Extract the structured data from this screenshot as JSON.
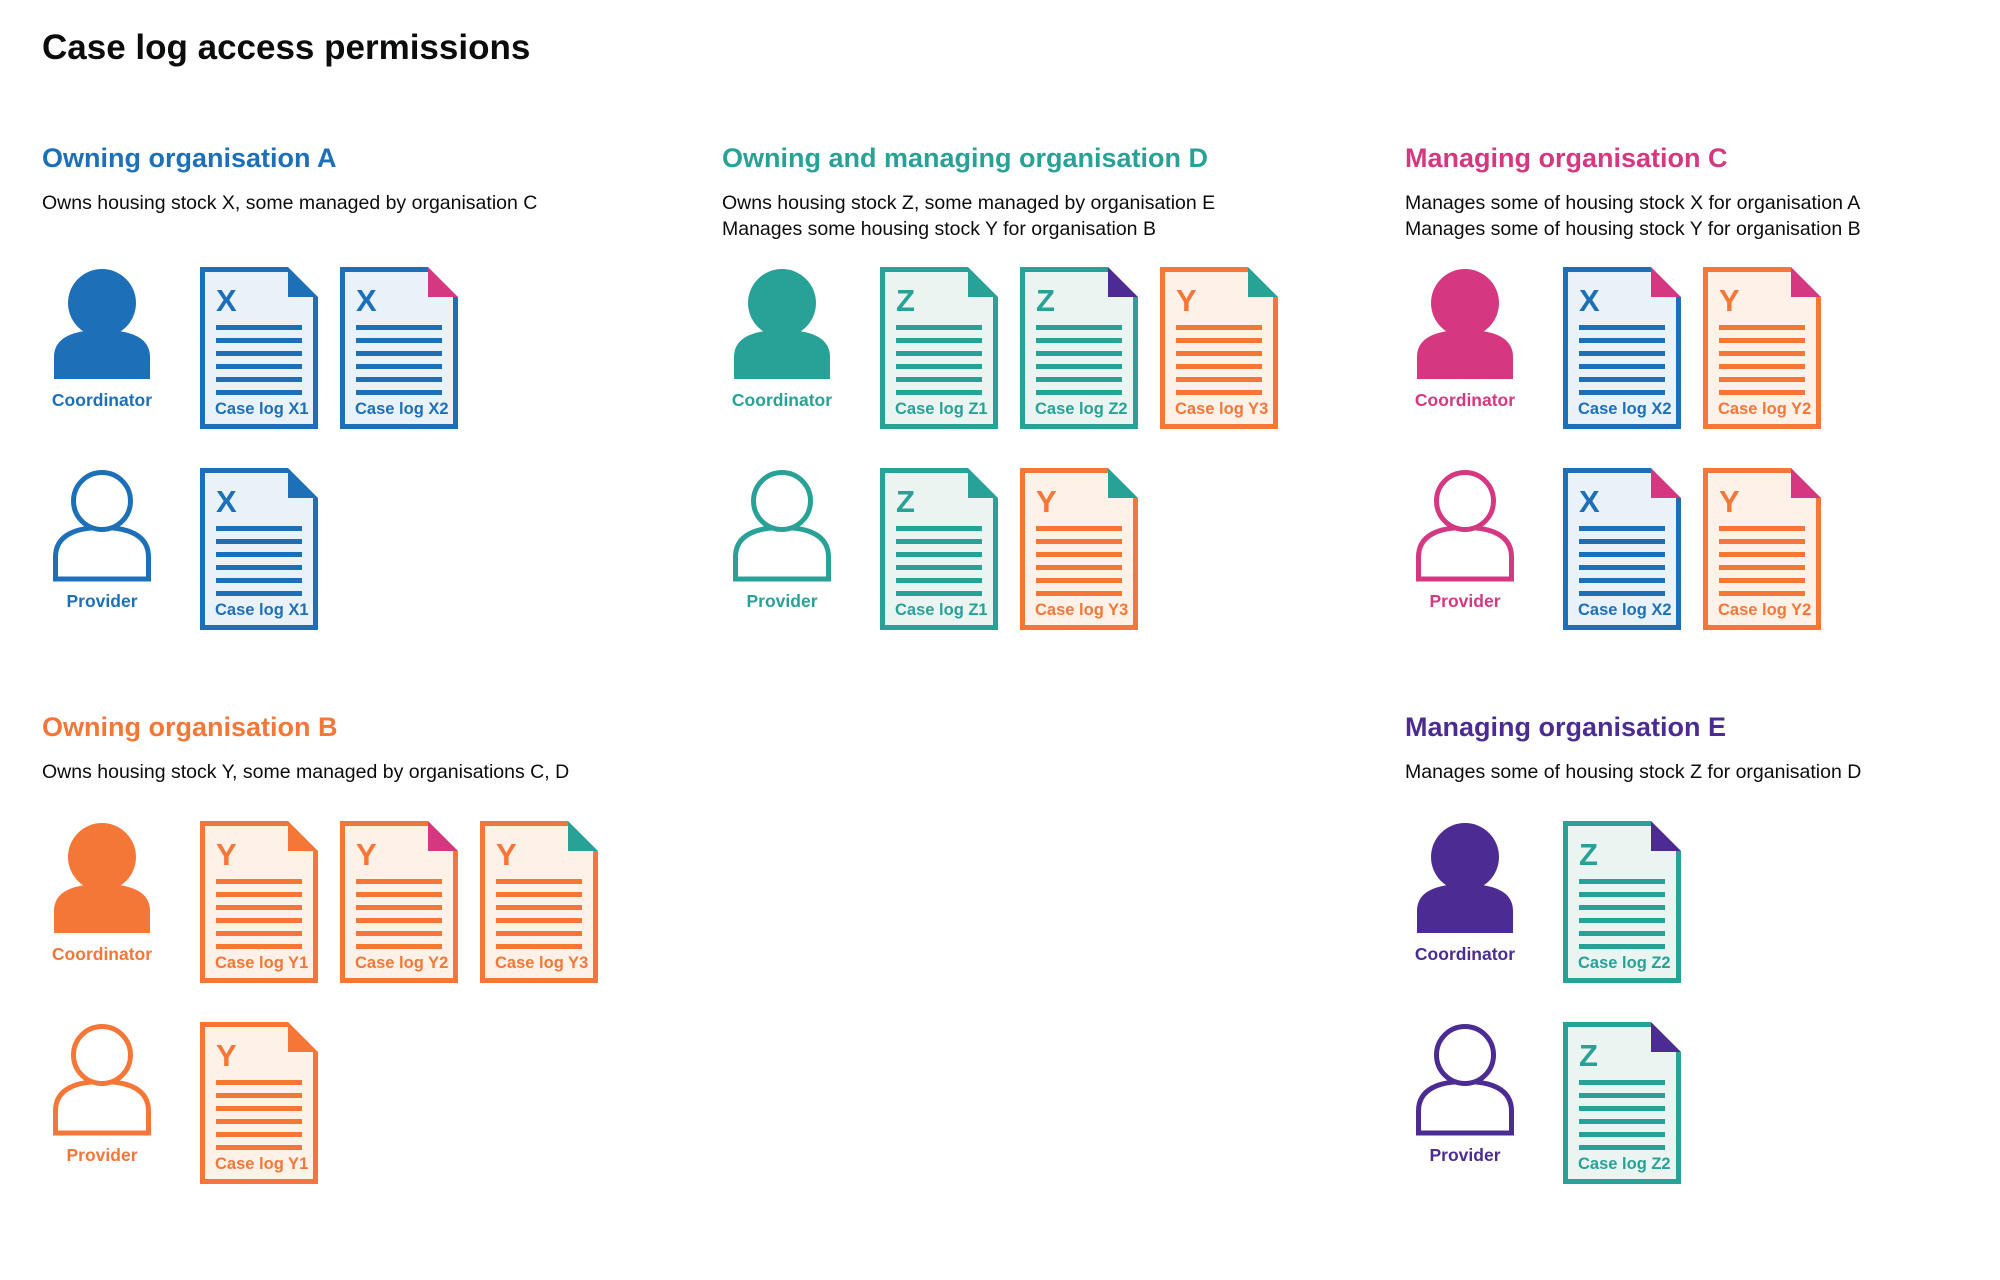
{
  "page": {
    "title": "Case log access permissions",
    "background": "#ffffff",
    "text_color": "#0b0c0c"
  },
  "palette": {
    "blue": "#1d70b8",
    "teal": "#28a197",
    "orange": "#f47738",
    "pink": "#d53880",
    "purple": "#4c2c92",
    "text": "#0b0c0c",
    "tints": {
      "blue": "#e9f1f9",
      "teal": "#eaf5f2",
      "orange": "#fdf1e8"
    }
  },
  "icons": {
    "coordinator": "person-solid-icon",
    "provider": "person-outline-icon",
    "document": "case-log-document-icon",
    "fold": "folded-corner"
  },
  "sections": [
    {
      "id": "owning-organisation-a",
      "title": "Owning organisation A",
      "color": "blue",
      "description": [
        "Owns housing stock X, some managed by organisation C"
      ],
      "groups": [
        {
          "role": "Coordinator",
          "person_style": "solid",
          "docs": [
            {
              "letter": "X",
              "label": "Case log X1",
              "doc_color": "blue",
              "fold_color": "blue"
            },
            {
              "letter": "X",
              "label": "Case log X2",
              "doc_color": "blue",
              "fold_color": "pink"
            }
          ]
        },
        {
          "role": "Provider",
          "person_style": "outline",
          "docs": [
            {
              "letter": "X",
              "label": "Case log X1",
              "doc_color": "blue",
              "fold_color": "blue"
            }
          ]
        }
      ]
    },
    {
      "id": "owning-and-managing-organisation-d",
      "title": "Owning and managing organisation D",
      "color": "teal",
      "description": [
        "Owns housing stock Z, some managed by organisation E",
        "Manages some housing stock Y for organisation B"
      ],
      "groups": [
        {
          "role": "Coordinator",
          "person_style": "solid",
          "docs": [
            {
              "letter": "Z",
              "label": "Case log Z1",
              "doc_color": "teal",
              "fold_color": "teal"
            },
            {
              "letter": "Z",
              "label": "Case log Z2",
              "doc_color": "teal",
              "fold_color": "purple"
            },
            {
              "letter": "Y",
              "label": "Case log Y3",
              "doc_color": "orange",
              "fold_color": "teal"
            }
          ]
        },
        {
          "role": "Provider",
          "person_style": "outline",
          "docs": [
            {
              "letter": "Z",
              "label": "Case log Z1",
              "doc_color": "teal",
              "fold_color": "teal"
            },
            {
              "letter": "Y",
              "label": "Case log Y3",
              "doc_color": "orange",
              "fold_color": "teal"
            }
          ]
        }
      ]
    },
    {
      "id": "managing-organisation-c",
      "title": "Managing organisation C",
      "color": "pink",
      "description": [
        "Manages some of housing stock X for organisation A",
        "Manages some of housing stock Y for organisation B"
      ],
      "groups": [
        {
          "role": "Coordinator",
          "person_style": "solid",
          "docs": [
            {
              "letter": "X",
              "label": "Case log X2",
              "doc_color": "blue",
              "fold_color": "pink"
            },
            {
              "letter": "Y",
              "label": "Case log Y2",
              "doc_color": "orange",
              "fold_color": "pink"
            }
          ]
        },
        {
          "role": "Provider",
          "person_style": "outline",
          "docs": [
            {
              "letter": "X",
              "label": "Case log X2",
              "doc_color": "blue",
              "fold_color": "pink"
            },
            {
              "letter": "Y",
              "label": "Case log Y2",
              "doc_color": "orange",
              "fold_color": "pink"
            }
          ]
        }
      ]
    },
    {
      "id": "owning-organisation-b",
      "title": "Owning organisation B",
      "color": "orange",
      "description": [
        "Owns housing stock Y, some managed by organisations C, D"
      ],
      "groups": [
        {
          "role": "Coordinator",
          "person_style": "solid",
          "docs": [
            {
              "letter": "Y",
              "label": "Case log Y1",
              "doc_color": "orange",
              "fold_color": "orange"
            },
            {
              "letter": "Y",
              "label": "Case log Y2",
              "doc_color": "orange",
              "fold_color": "pink"
            },
            {
              "letter": "Y",
              "label": "Case log Y3",
              "doc_color": "orange",
              "fold_color": "teal"
            }
          ]
        },
        {
          "role": "Provider",
          "person_style": "outline",
          "docs": [
            {
              "letter": "Y",
              "label": "Case log Y1",
              "doc_color": "orange",
              "fold_color": "orange"
            }
          ]
        }
      ]
    },
    {
      "id": "managing-organisation-e",
      "title": "Managing organisation E",
      "color": "purple",
      "description": [
        "Manages some of housing stock Z for organisation D"
      ],
      "groups": [
        {
          "role": "Coordinator",
          "person_style": "solid",
          "docs": [
            {
              "letter": "Z",
              "label": "Case log Z2",
              "doc_color": "teal",
              "fold_color": "purple"
            }
          ]
        },
        {
          "role": "Provider",
          "person_style": "outline",
          "docs": [
            {
              "letter": "Z",
              "label": "Case log Z2",
              "doc_color": "teal",
              "fold_color": "purple"
            }
          ]
        }
      ]
    }
  ]
}
